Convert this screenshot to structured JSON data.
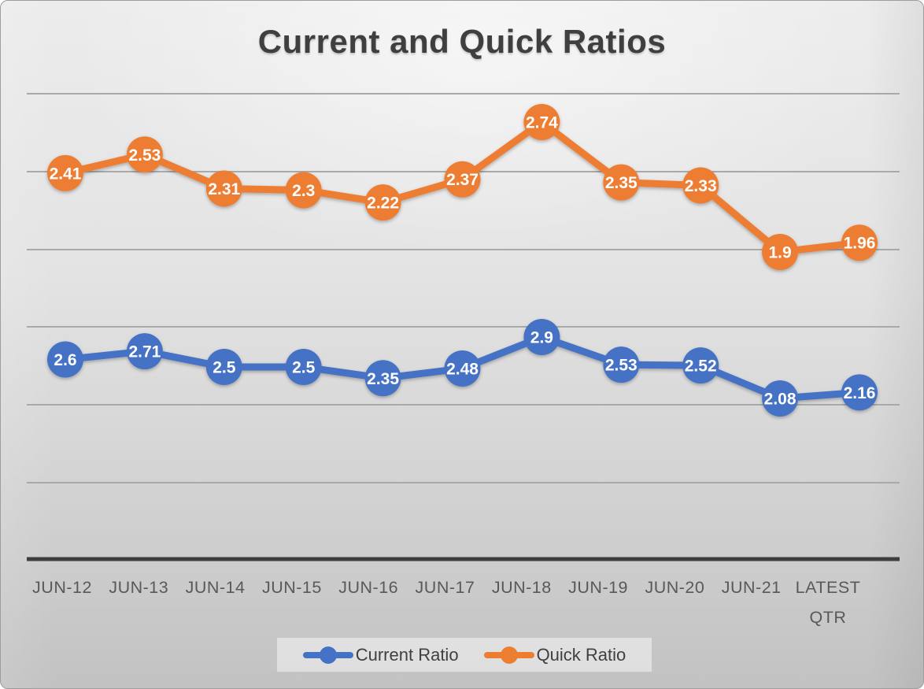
{
  "chart_data": {
    "type": "line",
    "title": "Current and Quick Ratios",
    "categories": [
      "JUN-12",
      "JUN-13",
      "JUN-14",
      "JUN-15",
      "JUN-16",
      "JUN-17",
      "JUN-18",
      "JUN-19",
      "JUN-20",
      "JUN-21",
      "LATEST QTR"
    ],
    "series": [
      {
        "name": "Current Ratio",
        "color": "#4472C4",
        "values": [
          2.6,
          2.71,
          2.5,
          2.5,
          2.35,
          2.48,
          2.9,
          2.53,
          2.52,
          2.08,
          2.16
        ]
      },
      {
        "name": "Quick Ratio",
        "color": "#ED7D31",
        "values": [
          2.41,
          2.53,
          2.31,
          2.3,
          2.22,
          2.37,
          2.74,
          2.35,
          2.33,
          1.9,
          1.96
        ]
      }
    ],
    "legend_position": "bottom",
    "grid": true,
    "gridline_count": 6,
    "y_axis_labels_visible": false,
    "data_labels": "on-marker"
  },
  "colors": {
    "gridline": "#a9a9a9",
    "axis_line": "#3d3d3d",
    "title_text": "#3f3f3f",
    "tick_label_text": "#595959",
    "data_label_text": "#ffffff",
    "legend_text": "#404040"
  }
}
